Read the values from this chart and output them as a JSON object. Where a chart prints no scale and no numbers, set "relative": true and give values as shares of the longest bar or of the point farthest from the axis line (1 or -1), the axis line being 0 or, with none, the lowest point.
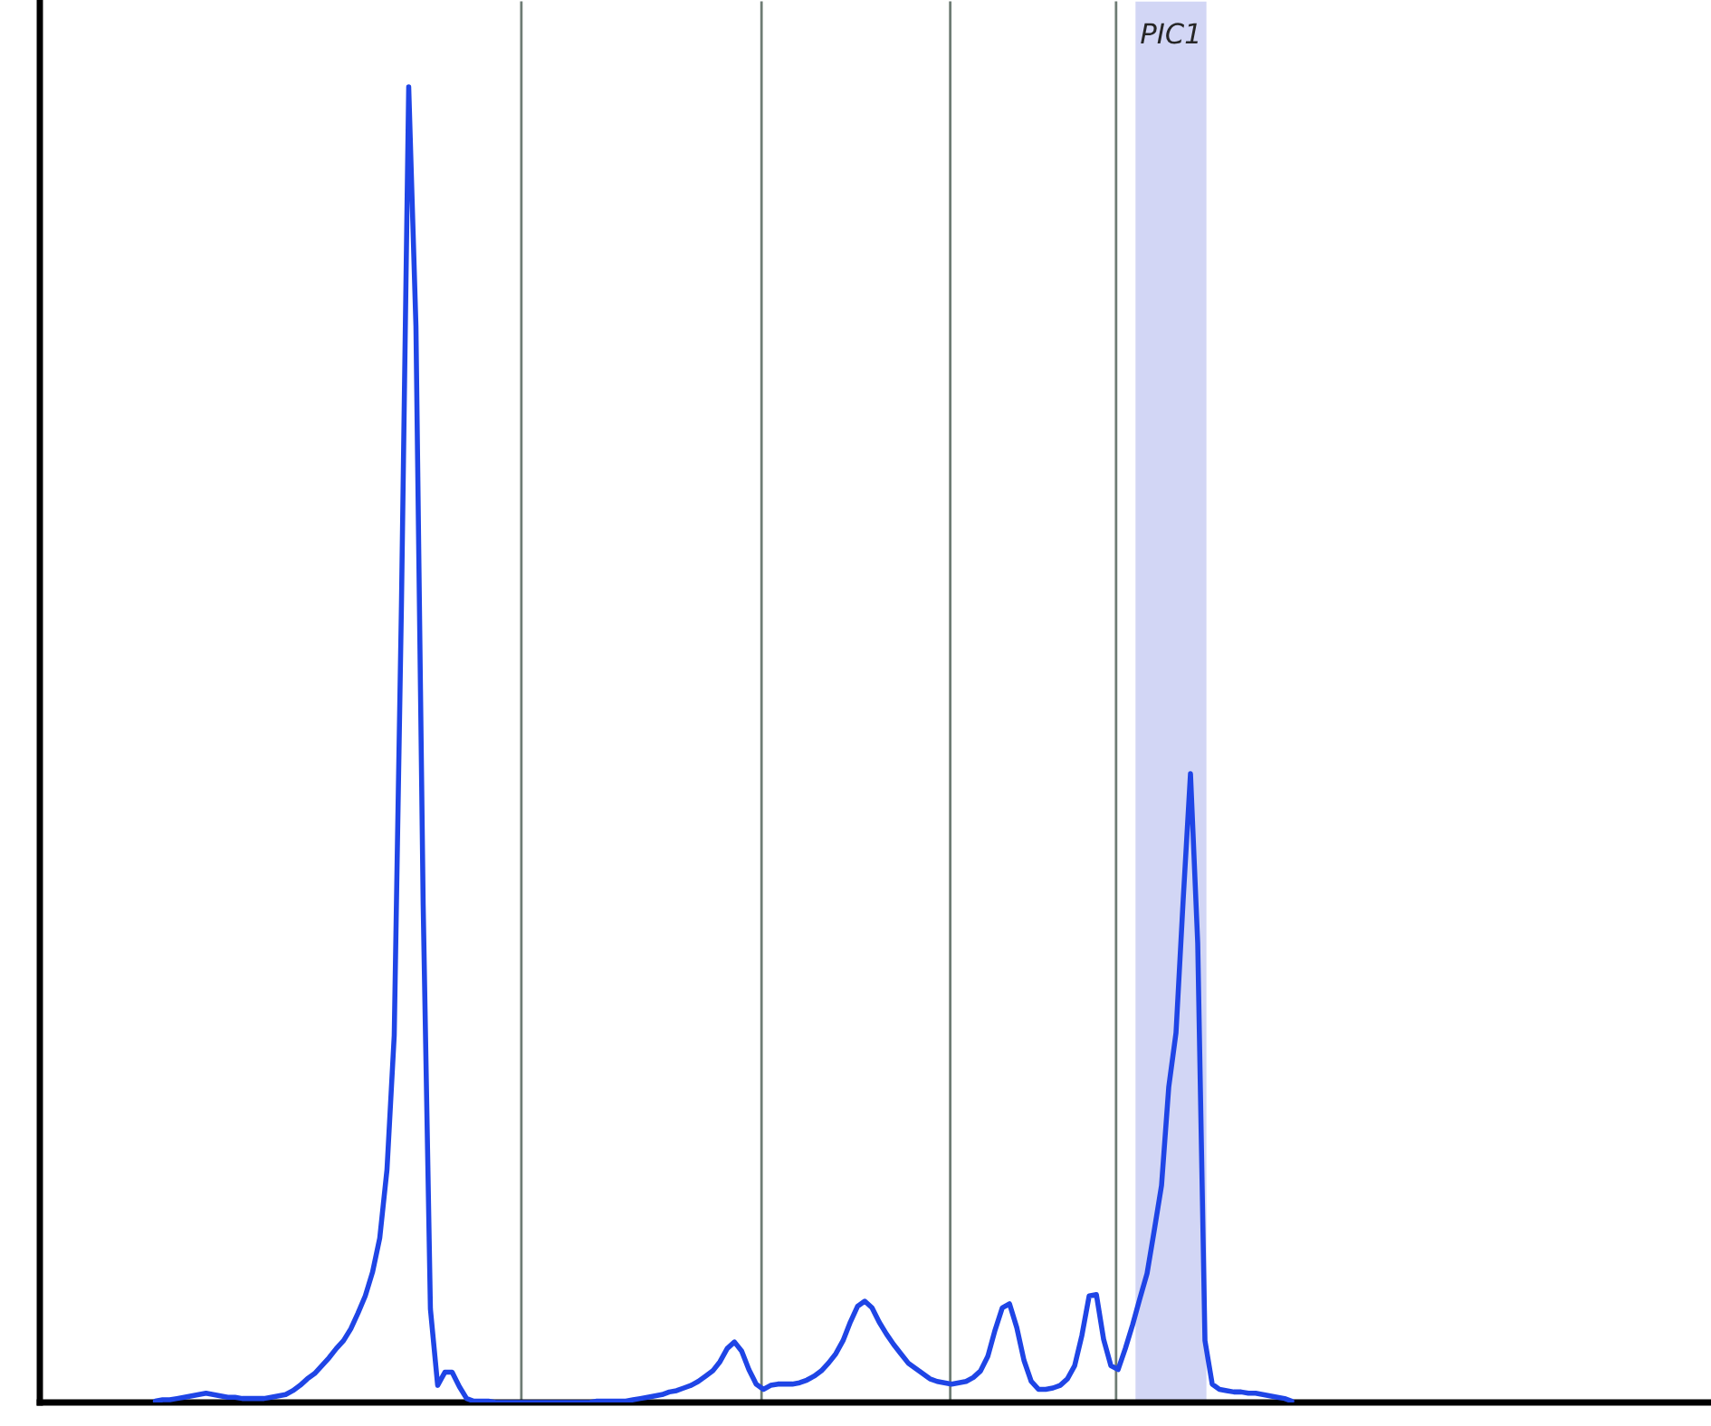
{
  "chart_data": {
    "type": "line",
    "relative": true,
    "annotations": [
      "PIC1"
    ],
    "categories": [
      null,
      null,
      null,
      null,
      null,
      null,
      null,
      null,
      null,
      null,
      null,
      null,
      null,
      null,
      null,
      null,
      null,
      null,
      null,
      null,
      null,
      null,
      null,
      null,
      null,
      null,
      null,
      null,
      null,
      null,
      null,
      null,
      null,
      null,
      null,
      null,
      null,
      null,
      null,
      null,
      null,
      null,
      null,
      null,
      null,
      null,
      null,
      null,
      null,
      null,
      null,
      null,
      null,
      null,
      null,
      null,
      null,
      null,
      null,
      null,
      null,
      null,
      null,
      null,
      null,
      null,
      null,
      null,
      null,
      null,
      null,
      null,
      null,
      null,
      null,
      null,
      null,
      null,
      null,
      null,
      null,
      null,
      null,
      null,
      null,
      null,
      null,
      null,
      null,
      null,
      null,
      null,
      null,
      null,
      null,
      null,
      null,
      null,
      null,
      null,
      null,
      null,
      null,
      null,
      null,
      null,
      null,
      null,
      null,
      null,
      null,
      null,
      null,
      null,
      null,
      null,
      null,
      null,
      null,
      null,
      null,
      null,
      null,
      null,
      null,
      null,
      null,
      null,
      null,
      null,
      null,
      null,
      null,
      null,
      null,
      null,
      null,
      null,
      null,
      null,
      null,
      null,
      null,
      null,
      null,
      null,
      null,
      null,
      null,
      null,
      null,
      null,
      null,
      null,
      null,
      null,
      null,
      null
    ],
    "series": [
      {
        "color": "#1f45e6",
        "values": [
          0.001,
          0.002,
          0.002,
          0.003,
          0.004,
          0.005,
          0.006,
          0.007,
          0.006,
          0.005,
          0.004,
          0.004,
          0.003,
          0.003,
          0.003,
          0.003,
          0.004,
          0.005,
          0.006,
          0.009,
          0.013,
          0.018,
          0.022,
          0.028,
          0.034,
          0.041,
          0.047,
          0.056,
          0.068,
          0.081,
          0.099,
          0.125,
          0.177,
          0.279,
          0.607,
          1.0,
          0.818,
          0.378,
          0.071,
          0.013,
          0.023,
          0.023,
          0.012,
          0.003,
          0.001,
          0.001,
          0.001,
          0,
          0,
          0,
          0,
          0,
          0,
          0,
          0,
          0,
          0,
          0,
          0,
          0,
          0,
          0.001,
          0.001,
          0.001,
          0.001,
          0.001,
          0.002,
          0.003,
          0.004,
          0.005,
          0.006,
          0.008,
          0.009,
          0.011,
          0.013,
          0.016,
          0.02,
          0.024,
          0.031,
          0.041,
          0.046,
          0.039,
          0.025,
          0.014,
          0.01,
          0.013,
          0.014,
          0.014,
          0.014,
          0.015,
          0.017,
          0.02,
          0.024,
          0.03,
          0.037,
          0.047,
          0.061,
          0.073,
          0.077,
          0.072,
          0.061,
          0.052,
          0.044,
          0.037,
          0.03,
          0.026,
          0.022,
          0.018,
          0.016,
          0.015,
          0.014,
          0.015,
          0.016,
          0.019,
          0.024,
          0.035,
          0.055,
          0.072,
          0.075,
          0.057,
          0.032,
          0.016,
          0.01,
          0.01,
          0.011,
          0.013,
          0.018,
          0.028,
          0.051,
          0.081,
          0.082,
          0.048,
          0.028,
          0.025,
          0.041,
          0.059,
          0.079,
          0.098,
          0.131,
          0.165,
          0.24,
          0.281,
          0.383,
          0.478,
          0.349,
          0.047,
          0.014,
          0.01,
          0.009,
          0.008,
          0.008,
          0.007,
          0.007,
          0.006,
          0.005,
          0.004,
          0.003,
          0.001
        ]
      }
    ]
  }
}
